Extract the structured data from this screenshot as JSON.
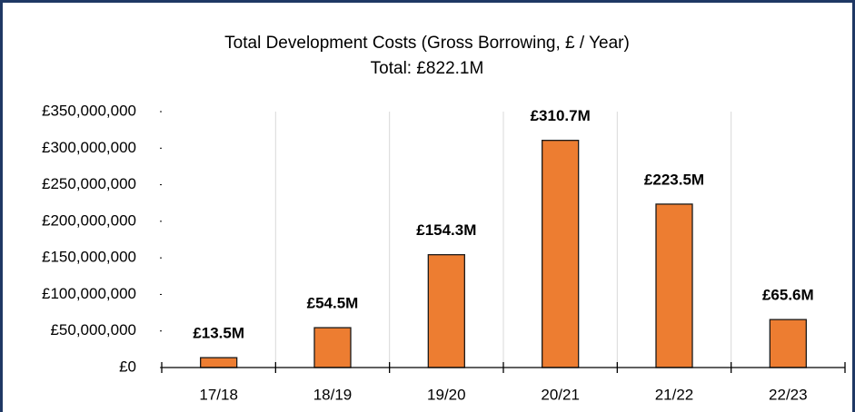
{
  "chart_data": {
    "type": "bar",
    "title": "Total Development Costs (Gross Borrowing, £ / Year)",
    "subtitle": "Total: £822.1M",
    "categories": [
      "17/18",
      "18/19",
      "19/20",
      "20/21",
      "21/22",
      "22/23"
    ],
    "values": [
      13500000,
      54500000,
      154300000,
      310700000,
      223500000,
      65600000
    ],
    "value_labels": [
      "£13.5M",
      "£54.5M",
      "£154.3M",
      "£310.7M",
      "£223.5M",
      "£65.6M"
    ],
    "color": "#ed7d31",
    "ylim": [
      0,
      350000000
    ],
    "yticks": [
      {
        "value": 0,
        "label": "£0"
      },
      {
        "value": 50000000,
        "label": "£50,000,000"
      },
      {
        "value": 100000000,
        "label": "£100,000,000"
      },
      {
        "value": 150000000,
        "label": "£150,000,000"
      },
      {
        "value": 200000000,
        "label": "£200,000,000"
      },
      {
        "value": 250000000,
        "label": "£250,000,000"
      },
      {
        "value": 300000000,
        "label": "£300,000,000"
      },
      {
        "value": 350000000,
        "label": "£350,000,000"
      }
    ]
  }
}
